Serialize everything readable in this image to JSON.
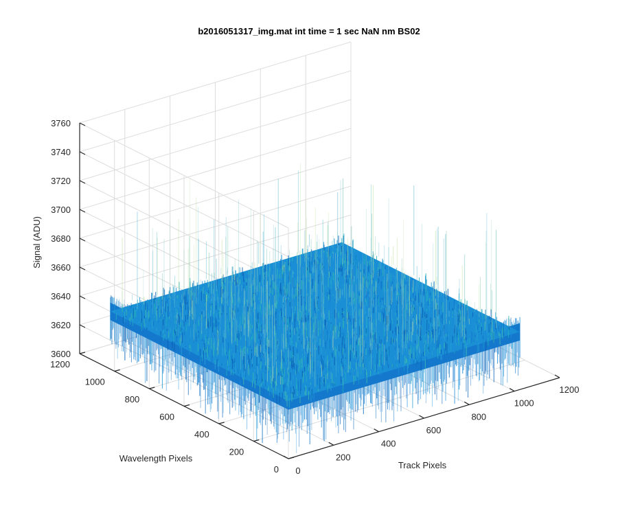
{
  "chart_data": {
    "type": "surface",
    "title": "b2016051317_img.mat int time = 1 sec  NaN nm BS02",
    "xlabel": "Track Pixels",
    "ylabel": "Wavelength Pixels",
    "zlabel": "Signal (ADU)",
    "xlim": [
      0,
      1200
    ],
    "ylim": [
      0,
      1200
    ],
    "zlim": [
      3600,
      3760
    ],
    "xticks": [
      "0",
      "200",
      "400",
      "600",
      "800",
      "1000",
      "1200"
    ],
    "yticks": [
      "0",
      "200",
      "400",
      "600",
      "800",
      "1000",
      "1200"
    ],
    "zticks": [
      "3600",
      "3620",
      "3640",
      "3660",
      "3680",
      "3700",
      "3720",
      "3740",
      "3760"
    ],
    "surface": {
      "x_extent": [
        0,
        1024
      ],
      "y_extent": [
        0,
        1024
      ],
      "mean_signal": 3640,
      "noise_range": [
        3610,
        3700
      ],
      "colormap": "parula",
      "dominant_color": "#1a8fd6"
    },
    "grid": true,
    "view": "3d-isometric"
  }
}
